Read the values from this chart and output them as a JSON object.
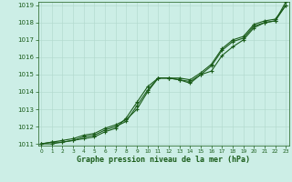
{
  "x": [
    0,
    1,
    2,
    3,
    4,
    5,
    6,
    7,
    8,
    9,
    10,
    11,
    12,
    13,
    14,
    15,
    16,
    17,
    18,
    19,
    20,
    21,
    22,
    23
  ],
  "line1": [
    1011.0,
    1011.1,
    1011.2,
    1011.3,
    1011.5,
    1011.6,
    1011.9,
    1012.1,
    1012.4,
    1013.0,
    1014.0,
    1014.8,
    1014.8,
    1014.8,
    1014.7,
    1015.1,
    1015.6,
    1016.5,
    1017.0,
    1017.2,
    1017.9,
    1018.1,
    1018.2,
    1019.0
  ],
  "line2": [
    1011.0,
    1011.1,
    1011.1,
    1011.2,
    1011.4,
    1011.5,
    1011.8,
    1012.0,
    1012.3,
    1013.2,
    1014.1,
    1014.8,
    1014.8,
    1014.7,
    1014.6,
    1015.0,
    1015.2,
    1016.1,
    1016.6,
    1017.0,
    1017.7,
    1018.0,
    1018.1,
    1019.2
  ],
  "line3": [
    1011.0,
    1011.0,
    1011.1,
    1011.2,
    1011.3,
    1011.4,
    1011.7,
    1011.9,
    1012.5,
    1013.4,
    1014.3,
    1014.8,
    1014.8,
    1014.7,
    1014.5,
    1015.0,
    1015.5,
    1016.4,
    1016.9,
    1017.1,
    1017.8,
    1018.0,
    1018.1,
    1019.0
  ],
  "ylim": [
    1011,
    1019
  ],
  "yticks": [
    1011,
    1012,
    1013,
    1014,
    1015,
    1016,
    1017,
    1018,
    1019
  ],
  "xticks": [
    0,
    1,
    2,
    3,
    4,
    5,
    6,
    7,
    8,
    9,
    10,
    11,
    12,
    13,
    14,
    15,
    16,
    17,
    18,
    19,
    20,
    21,
    22,
    23
  ],
  "line_color": "#1a5c1a",
  "bg_color": "#cceee6",
  "grid_color": "#b0d8cc",
  "xlabel": "Graphe pression niveau de la mer (hPa)",
  "xlabel_color": "#1a5c1a",
  "tick_color": "#1a5c1a",
  "marker": "+",
  "markersize": 3,
  "linewidth": 0.8,
  "ytick_fontsize": 5.0,
  "xtick_fontsize": 4.2,
  "xlabel_fontsize": 6.0
}
